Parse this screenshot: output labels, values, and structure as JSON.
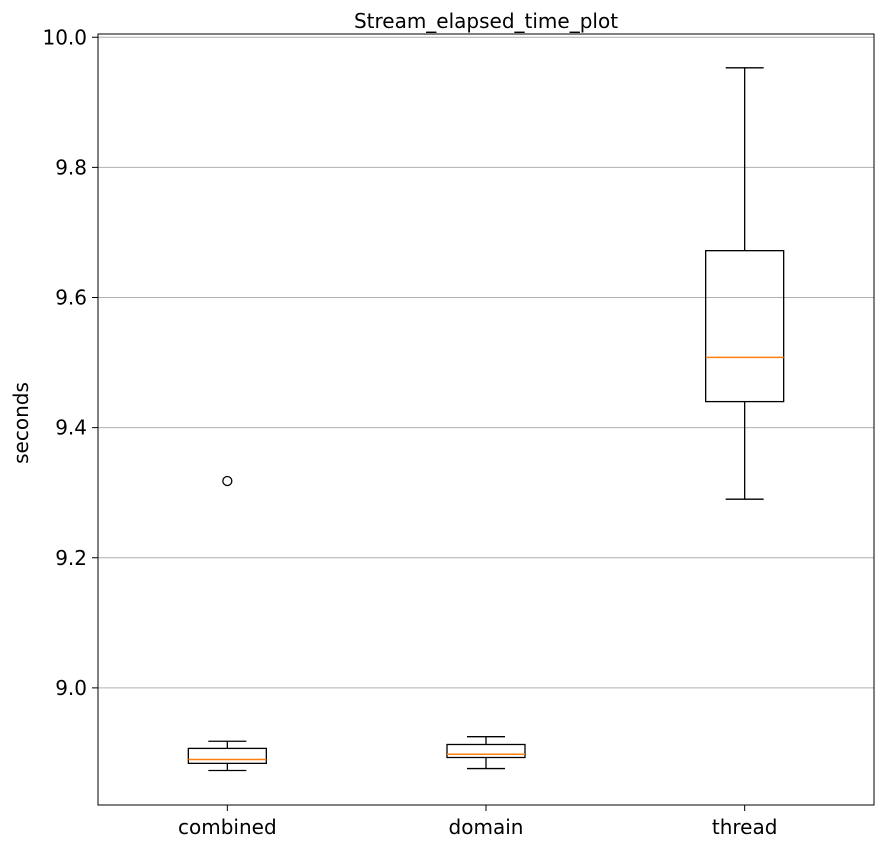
{
  "chart_data": {
    "type": "boxplot",
    "title": "Stream_elapsed_time_plot",
    "xlabel": "",
    "ylabel": "seconds",
    "ylim": [
      8.82,
      10.005
    ],
    "yticks": [
      "9.0",
      "9.2",
      "9.4",
      "9.6",
      "9.8",
      "10.0"
    ],
    "ytick_values": [
      9.0,
      9.2,
      9.4,
      9.6,
      9.8,
      10.0
    ],
    "grid": "horizontal",
    "colors": {
      "box": "#000000",
      "median": "#ff7f0e",
      "grid": "#b0b0b0"
    },
    "categories": [
      "combined",
      "domain",
      "thread"
    ],
    "boxes": [
      {
        "label": "combined",
        "whisker_low": 8.873,
        "q1": 8.884,
        "median": 8.89,
        "q3": 8.907,
        "whisker_high": 8.918,
        "outliers": [
          9.318
        ]
      },
      {
        "label": "domain",
        "whisker_low": 8.876,
        "q1": 8.893,
        "median": 8.898,
        "q3": 8.913,
        "whisker_high": 8.925,
        "outliers": []
      },
      {
        "label": "thread",
        "whisker_low": 9.29,
        "q1": 9.44,
        "median": 9.508,
        "q3": 9.672,
        "whisker_high": 9.953,
        "outliers": []
      }
    ]
  }
}
